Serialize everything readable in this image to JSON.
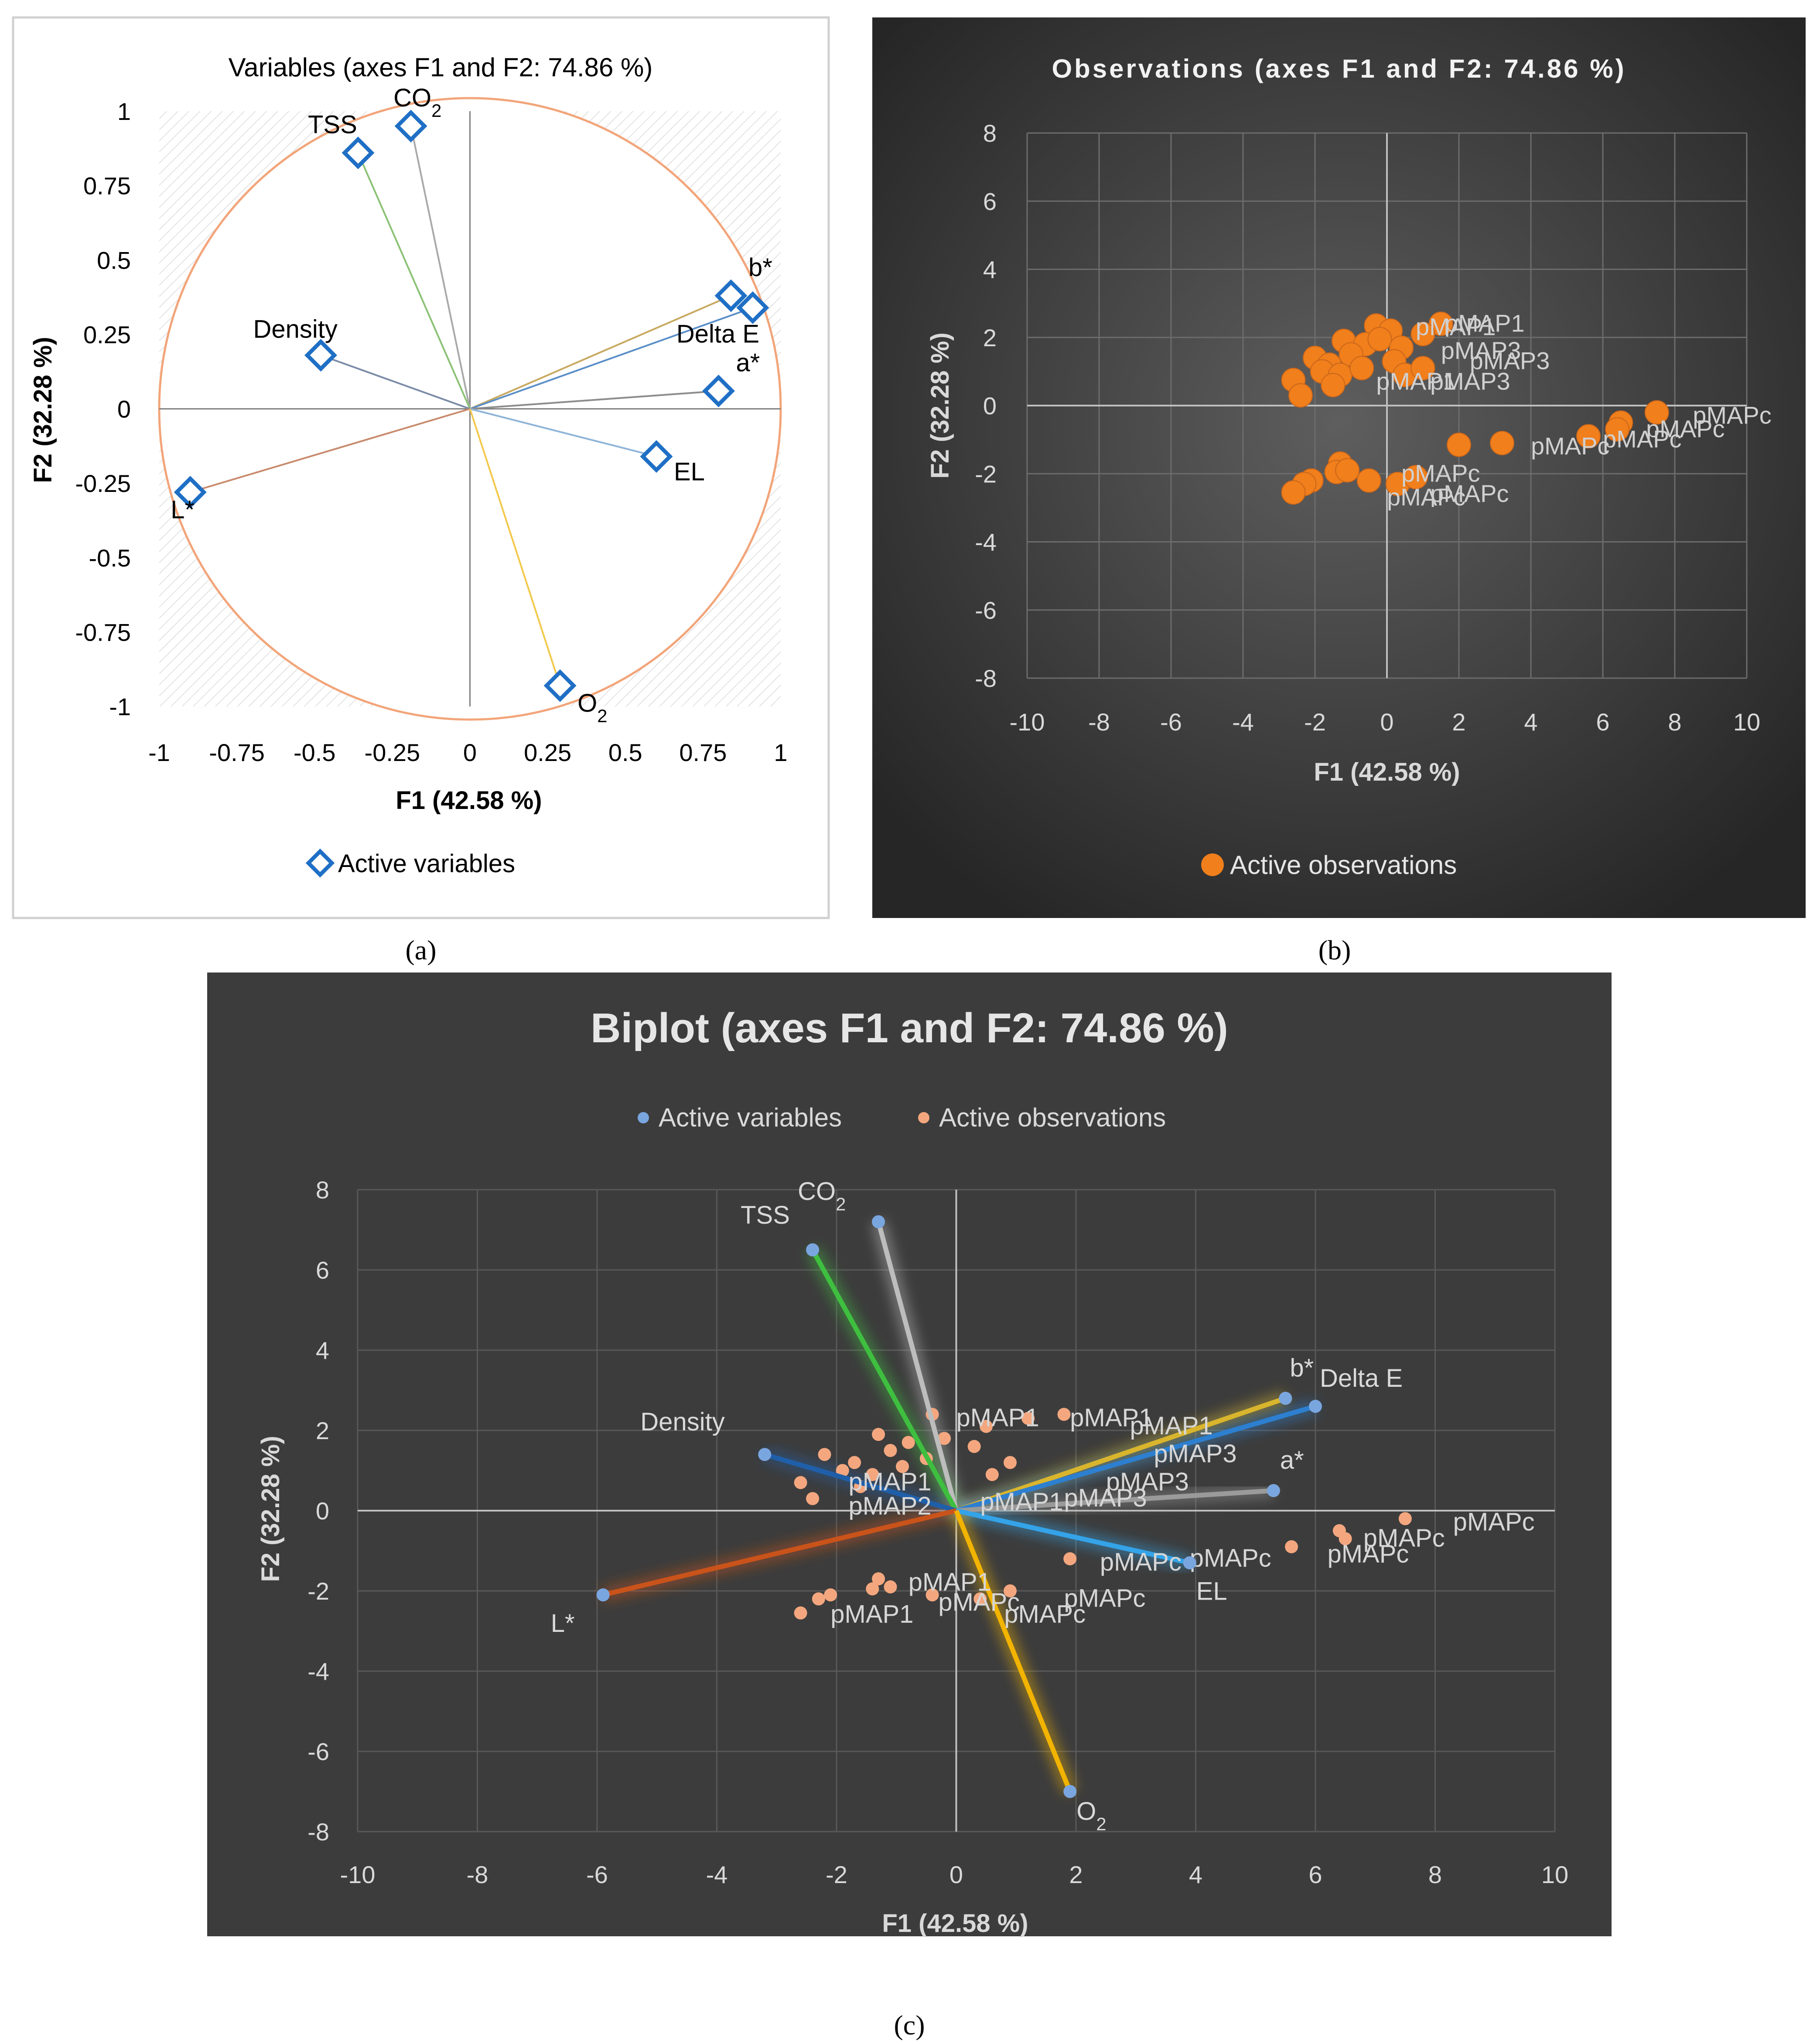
{
  "panel_labels": {
    "a": "(a)",
    "b": "(b)",
    "c": "(c)"
  },
  "colors": {
    "active_variables": "#1f6fc5",
    "active_observations": "#f07f1c",
    "circle": "#f2a57a",
    "dark_bg": "#3c3c3c"
  },
  "chart_data": [
    {
      "id": "a",
      "type": "scatter",
      "title": "Variables (axes F1 and F2: 74.86 %)",
      "xlabel": "F1 (42.58 %)",
      "ylabel": "F2 (32.28 %)",
      "xlim": [
        -1,
        1
      ],
      "ylim": [
        -1,
        1
      ],
      "xticks": [
        "-1",
        "-0.75",
        "-0.5",
        "-0.25",
        "0",
        "0.25",
        "0.5",
        "0.75",
        "1"
      ],
      "yticks": [
        "1",
        "0.75",
        "0.5",
        "0.25",
        "0",
        "-0.25",
        "-0.5",
        "-0.75",
        "-1"
      ],
      "legend": "Active variables",
      "legend_position": "bottom",
      "grid": false,
      "unit_circle": true,
      "points": [
        {
          "label": "CO2",
          "x": -0.19,
          "y": 0.95,
          "line_color": "#a9a9a9"
        },
        {
          "label": "TSS",
          "x": -0.36,
          "y": 0.86,
          "line_color": "#8cc276"
        },
        {
          "label": "b*",
          "x": 0.84,
          "y": 0.38,
          "line_color": "#c7a960"
        },
        {
          "label": "Delta E",
          "x": 0.91,
          "y": 0.34,
          "line_color": "#5b8fc8"
        },
        {
          "label": "Density",
          "x": -0.48,
          "y": 0.18,
          "line_color": "#7b8ca8"
        },
        {
          "label": "a*",
          "x": 0.8,
          "y": 0.06,
          "line_color": "#8c8c8c"
        },
        {
          "label": "EL",
          "x": 0.6,
          "y": -0.16,
          "line_color": "#8fb4d8"
        },
        {
          "label": "L*",
          "x": -0.9,
          "y": -0.28,
          "line_color": "#c98b6d"
        },
        {
          "label": "O2",
          "x": 0.29,
          "y": -0.93,
          "line_color": "#f2c94c"
        }
      ]
    },
    {
      "id": "b",
      "type": "scatter",
      "title": "Observations (axes F1 and F2: 74.86 %)",
      "xlabel": "F1 (42.58 %)",
      "ylabel": "F2 (32.28 %)",
      "xlim": [
        -10,
        10
      ],
      "ylim": [
        -8,
        8
      ],
      "xticks": [
        "-10",
        "-8",
        "-6",
        "-4",
        "-2",
        "0",
        "2",
        "4",
        "6",
        "8",
        "10"
      ],
      "yticks": [
        "8",
        "6",
        "4",
        "2",
        "0",
        "-2",
        "-4",
        "-6",
        "-8"
      ],
      "legend": "Active observations",
      "legend_position": "bottom",
      "grid": true,
      "points": [
        {
          "x": -0.3,
          "y": 2.35
        },
        {
          "x": 0.1,
          "y": 2.2
        },
        {
          "x": 1.5,
          "y": 2.4
        },
        {
          "x": 1.0,
          "y": 2.1
        },
        {
          "x": -1.2,
          "y": 1.9
        },
        {
          "x": -0.6,
          "y": 1.8
        },
        {
          "x": -0.2,
          "y": 1.95
        },
        {
          "x": 0.4,
          "y": 1.7
        },
        {
          "x": -2.0,
          "y": 1.4
        },
        {
          "x": -1.6,
          "y": 1.2
        },
        {
          "x": -1.0,
          "y": 1.5
        },
        {
          "x": 0.2,
          "y": 1.3
        },
        {
          "x": -1.8,
          "y": 1.0
        },
        {
          "x": -1.3,
          "y": 0.9
        },
        {
          "x": -0.7,
          "y": 1.1
        },
        {
          "x": 0.5,
          "y": 0.9
        },
        {
          "x": -2.6,
          "y": 0.75
        },
        {
          "x": -2.4,
          "y": 0.3
        },
        {
          "x": -1.5,
          "y": 0.6
        },
        {
          "x": 1.0,
          "y": 1.1
        },
        {
          "x": 7.5,
          "y": -0.2
        },
        {
          "x": 6.5,
          "y": -0.5
        },
        {
          "x": 6.4,
          "y": -0.7
        },
        {
          "x": 5.6,
          "y": -0.9
        },
        {
          "x": 3.2,
          "y": -1.1
        },
        {
          "x": 2.0,
          "y": -1.15
        },
        {
          "x": -1.3,
          "y": -1.7
        },
        {
          "x": -1.4,
          "y": -1.95
        },
        {
          "x": -1.1,
          "y": -1.9
        },
        {
          "x": -2.1,
          "y": -2.2
        },
        {
          "x": -2.3,
          "y": -2.3
        },
        {
          "x": -2.6,
          "y": -2.55
        },
        {
          "x": -0.5,
          "y": -2.2
        },
        {
          "x": 0.3,
          "y": -2.3
        },
        {
          "x": 0.8,
          "y": -2.1
        }
      ],
      "labels": [
        {
          "text": "pMAP1",
          "x": 1.6,
          "y": 2.4
        },
        {
          "text": "pMAP1",
          "x": 0.8,
          "y": 2.3
        },
        {
          "text": "pMAP3",
          "x": 2.3,
          "y": 1.3
        },
        {
          "text": "pMAP3",
          "x": 1.5,
          "y": 1.6
        },
        {
          "text": "pMAP1",
          "x": -0.3,
          "y": 0.7
        },
        {
          "text": "pMAP3",
          "x": 1.2,
          "y": 0.7
        },
        {
          "text": "pMAPc",
          "x": 8.5,
          "y": -0.3
        },
        {
          "text": "pMAPc",
          "x": 7.2,
          "y": -0.7
        },
        {
          "text": "pMAPc",
          "x": 6.0,
          "y": -1.0
        },
        {
          "text": "pMAPc",
          "x": 4.0,
          "y": -1.2
        },
        {
          "text": "pMAPc",
          "x": 0.4,
          "y": -2.0
        },
        {
          "text": "pMAPc",
          "x": 1.2,
          "y": -2.6
        },
        {
          "text": "pMAPc",
          "x": 0.0,
          "y": -2.7
        }
      ]
    },
    {
      "id": "c",
      "type": "scatter",
      "title": "Biplot (axes F1 and F2: 74.86 %)",
      "xlabel": "F1 (42.58 %)",
      "ylabel": "F2 (32.28 %)",
      "xlim": [
        -10,
        10
      ],
      "ylim": [
        -8,
        8
      ],
      "xticks": [
        "-10",
        "-8",
        "-6",
        "-4",
        "-2",
        "0",
        "2",
        "4",
        "6",
        "8",
        "10"
      ],
      "yticks": [
        "8",
        "6",
        "4",
        "2",
        "0",
        "-2",
        "-4",
        "-6",
        "-8"
      ],
      "legend_position": "top",
      "grid": true,
      "series": [
        {
          "name": "Active variables",
          "vectors": [
            {
              "label": "CO2",
              "x": -1.3,
              "y": 7.2,
              "color": "#bdbdbd"
            },
            {
              "label": "TSS",
              "x": -2.4,
              "y": 6.5,
              "color": "#3fbf3f"
            },
            {
              "label": "b*",
              "x": 5.5,
              "y": 2.8,
              "color": "#d9b52d"
            },
            {
              "label": "Delta E",
              "x": 6.0,
              "y": 2.6,
              "color": "#2d7fd0"
            },
            {
              "label": "Density",
              "x": -3.2,
              "y": 1.4,
              "color": "#1f5faa"
            },
            {
              "label": "a*",
              "x": 5.3,
              "y": 0.5,
              "color": "#9a9a9a"
            },
            {
              "label": "EL",
              "x": 3.9,
              "y": -1.3,
              "color": "#34a3e8"
            },
            {
              "label": "L*",
              "x": -5.9,
              "y": -2.1,
              "color": "#c9531a"
            },
            {
              "label": "O2",
              "x": 1.9,
              "y": -7.0,
              "color": "#f2b400"
            }
          ]
        },
        {
          "name": "Active observations",
          "points": [
            {
              "x": -0.4,
              "y": 2.4
            },
            {
              "x": 1.2,
              "y": 2.3
            },
            {
              "x": 1.8,
              "y": 2.4
            },
            {
              "x": 0.5,
              "y": 2.1
            },
            {
              "x": -1.3,
              "y": 1.9
            },
            {
              "x": -0.8,
              "y": 1.7
            },
            {
              "x": -0.2,
              "y": 1.8
            },
            {
              "x": 0.3,
              "y": 1.6
            },
            {
              "x": -2.2,
              "y": 1.4
            },
            {
              "x": -1.7,
              "y": 1.2
            },
            {
              "x": -1.1,
              "y": 1.5
            },
            {
              "x": -0.5,
              "y": 1.3
            },
            {
              "x": -1.9,
              "y": 1.0
            },
            {
              "x": -1.4,
              "y": 0.9
            },
            {
              "x": -0.9,
              "y": 1.1
            },
            {
              "x": 0.6,
              "y": 0.9
            },
            {
              "x": -2.6,
              "y": 0.7
            },
            {
              "x": -2.4,
              "y": 0.3
            },
            {
              "x": -1.6,
              "y": 0.6
            },
            {
              "x": 0.9,
              "y": 1.2
            },
            {
              "x": 7.5,
              "y": -0.2
            },
            {
              "x": 6.4,
              "y": -0.5
            },
            {
              "x": 6.5,
              "y": -0.7
            },
            {
              "x": 5.6,
              "y": -0.9
            },
            {
              "x": 1.9,
              "y": -1.2
            },
            {
              "x": -1.3,
              "y": -1.7
            },
            {
              "x": -1.4,
              "y": -1.95
            },
            {
              "x": -1.1,
              "y": -1.9
            },
            {
              "x": -2.1,
              "y": -2.1
            },
            {
              "x": -2.3,
              "y": -2.2
            },
            {
              "x": -2.6,
              "y": -2.55
            },
            {
              "x": -0.4,
              "y": -2.1
            },
            {
              "x": 0.4,
              "y": -2.2
            },
            {
              "x": 0.9,
              "y": -2.0
            }
          ],
          "labels": [
            {
              "text": "pMAP1",
              "x": 0.0,
              "y": 2.3
            },
            {
              "text": "pMAP1",
              "x": 1.9,
              "y": 2.3
            },
            {
              "text": "pMAP1",
              "x": 2.9,
              "y": 2.1
            },
            {
              "text": "pMAP3",
              "x": 3.3,
              "y": 1.4
            },
            {
              "text": "pMAP3",
              "x": 2.5,
              "y": 0.7
            },
            {
              "text": "pMAP1",
              "x": -1.8,
              "y": 0.7
            },
            {
              "text": "pMAP2",
              "x": -1.8,
              "y": 0.1
            },
            {
              "text": "pMAP1",
              "x": 0.4,
              "y": 0.2
            },
            {
              "text": "pMAP3",
              "x": 1.8,
              "y": 0.3
            },
            {
              "text": "pMAPc",
              "x": 8.3,
              "y": -0.3
            },
            {
              "text": "pMAPc",
              "x": 6.8,
              "y": -0.7
            },
            {
              "text": "pMAPc",
              "x": 6.2,
              "y": -1.1
            },
            {
              "text": "pMAPc",
              "x": 2.4,
              "y": -1.3
            },
            {
              "text": "pMAPc",
              "x": 3.9,
              "y": -1.2
            },
            {
              "text": "pMAP1",
              "x": -0.8,
              "y": -1.8
            },
            {
              "text": "pMAP1",
              "x": -2.1,
              "y": -2.6
            },
            {
              "text": "pMAPc",
              "x": 1.8,
              "y": -2.2
            },
            {
              "text": "pMAPc",
              "x": 0.8,
              "y": -2.6
            },
            {
              "text": "pMAPc",
              "x": -0.3,
              "y": -2.3
            }
          ]
        }
      ]
    }
  ]
}
